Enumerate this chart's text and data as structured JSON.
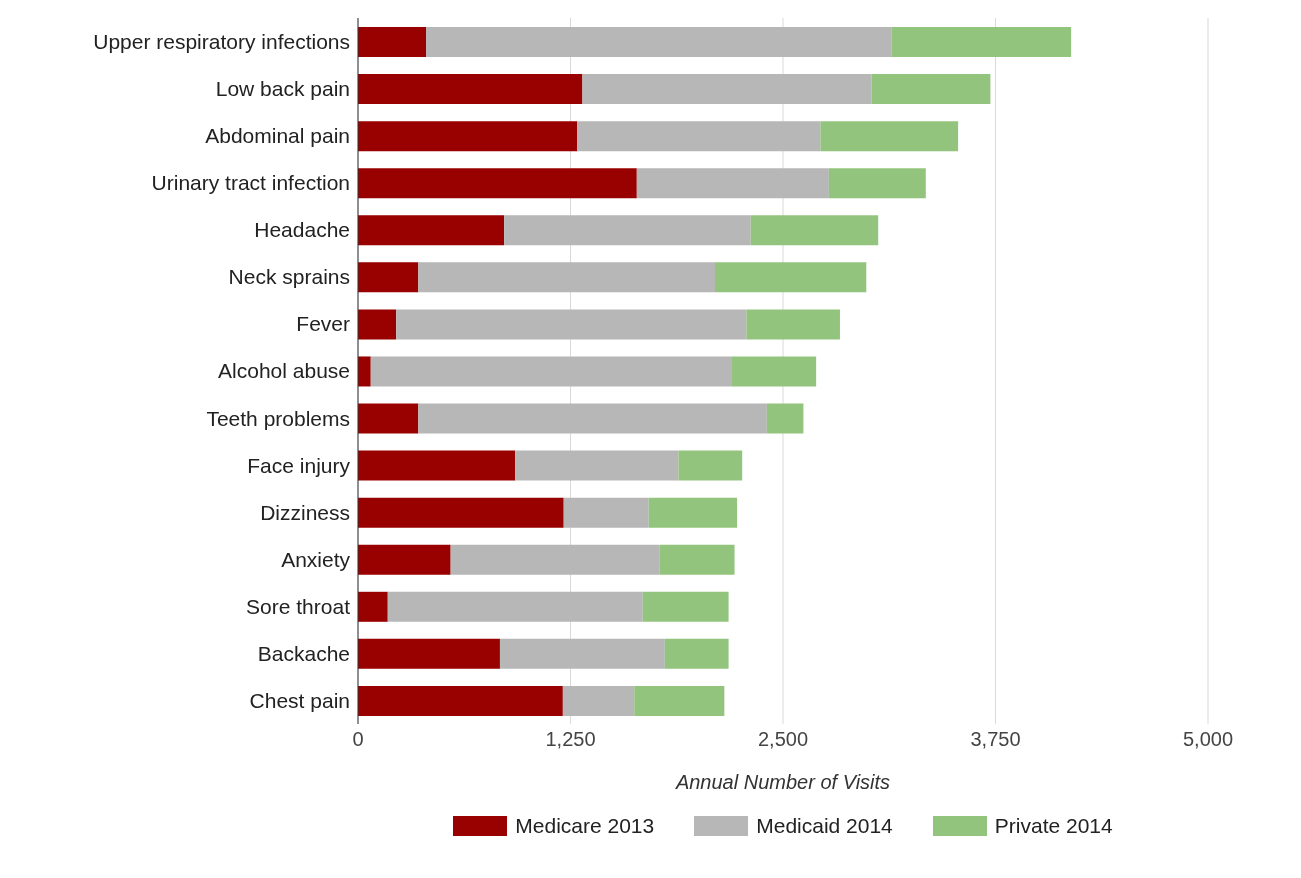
{
  "chart_data": {
    "type": "bar",
    "orientation": "horizontal",
    "stacked": true,
    "categories": [
      "Upper respiratory infections",
      "Low back pain",
      "Abdominal pain",
      "Urinary tract infection",
      "Headache",
      "Neck sprains",
      "Fever",
      "Alcohol abuse",
      "Teeth problems",
      "Face injury",
      "Dizziness",
      "Anxiety",
      "Sore throat",
      "Backache",
      "Chest pain"
    ],
    "series": [
      {
        "name": "Medicare 2013",
        "color": "#990000",
        "values": [
          400,
          1320,
          1290,
          1640,
          860,
          355,
          225,
          75,
          355,
          925,
          1210,
          545,
          175,
          835,
          1205
        ]
      },
      {
        "name": "Medicaid 2014",
        "color": "#b7b7b7",
        "values": [
          2740,
          1700,
          1430,
          1130,
          1450,
          1745,
          2060,
          2120,
          2050,
          960,
          500,
          1230,
          1500,
          970,
          420
        ]
      },
      {
        "name": "Private 2014",
        "color": "#93c47d",
        "values": [
          1055,
          700,
          810,
          570,
          750,
          890,
          550,
          500,
          215,
          375,
          520,
          440,
          505,
          375,
          530
        ]
      }
    ],
    "xlim": [
      0,
      5000
    ],
    "xticks": [
      0,
      {
        "value": 1250,
        "label": "1,250"
      },
      {
        "value": 2500,
        "label": "2,500"
      },
      {
        "value": 3750,
        "label": "3,750"
      },
      {
        "value": 5000,
        "label": "5,000"
      }
    ],
    "xlabel": "Annual Number of Visits",
    "grid": "x",
    "legend": "bottom"
  }
}
